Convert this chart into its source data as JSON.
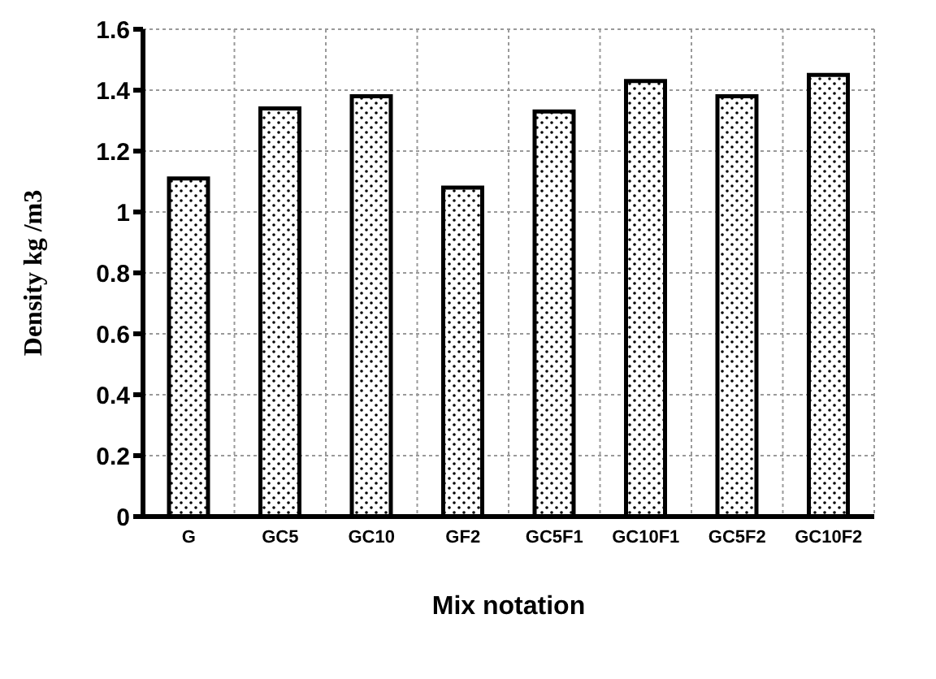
{
  "chart_data": {
    "type": "bar",
    "xlabel": "Mix notation",
    "ylabel": "Density  kg /m3",
    "categories": [
      "G",
      "GC5",
      "GC10",
      "GF2",
      "GC5F1",
      "GC10F1",
      "GC5F2",
      "GC10F2"
    ],
    "values": [
      1.11,
      1.34,
      1.38,
      1.08,
      1.33,
      1.43,
      1.38,
      1.45
    ],
    "color": "#000000",
    "ylim": [
      0,
      1.6
    ],
    "yticks": [
      0,
      0.2,
      0.4,
      0.6,
      0.8,
      1,
      1.2,
      1.4,
      1.6
    ],
    "grid": true
  }
}
